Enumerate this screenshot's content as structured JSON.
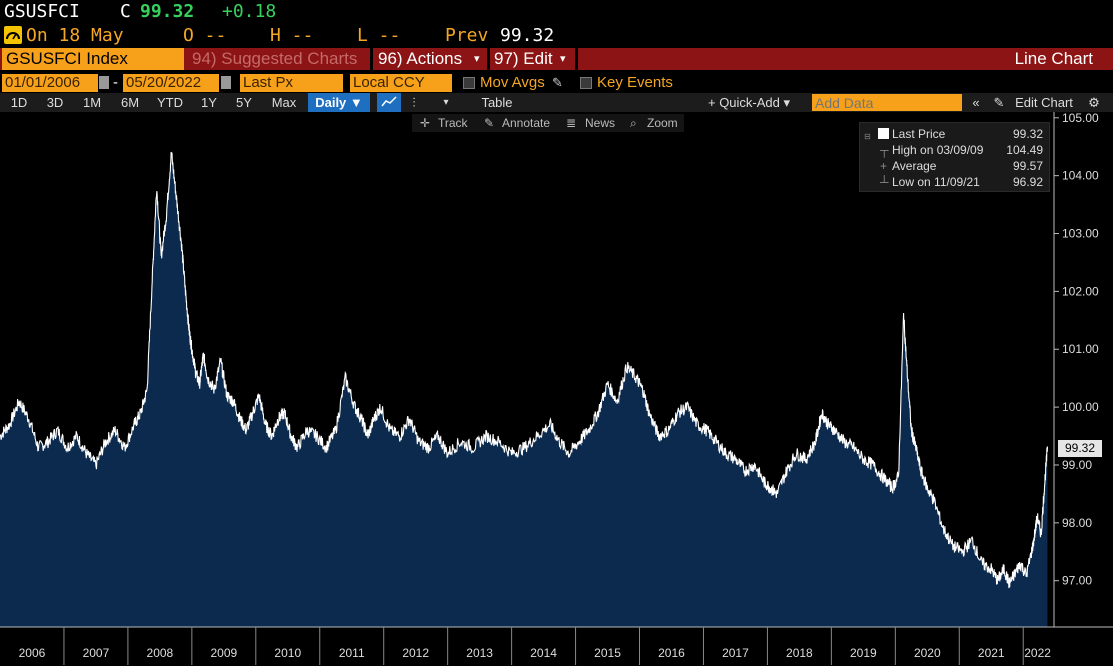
{
  "quote": {
    "ticker": "GSUSFCI",
    "close_flag": "C",
    "price": "99.32",
    "change": "+0.18",
    "date_label": "On 18 May",
    "open_label": "O --",
    "high_label": "H --",
    "low_label": "L --",
    "prev_label": "Prev",
    "prev_value": "99.32"
  },
  "menu": {
    "security": "GSUSFCI Index",
    "suggested": "94) Suggested Charts",
    "actions": "96) Actions",
    "edit": "97) Edit",
    "chart_type": "Line Chart"
  },
  "settings": {
    "start_date": "01/01/2006",
    "end_date": "05/20/2022",
    "field": "Last Px",
    "currency": "Local CCY",
    "mov_avgs": "Mov Avgs",
    "key_events": "Key Events"
  },
  "toolbar": {
    "periods": [
      "1D",
      "3D",
      "1M",
      "6M",
      "YTD",
      "1Y",
      "5Y",
      "Max"
    ],
    "frequency": "Daily ▼",
    "table": "Table",
    "quick_add": "+ Quick-Add ▾",
    "add_data_placeholder": "Add Data",
    "edit_chart": "Edit Chart",
    "track": "Track",
    "annotate": "Annotate",
    "news": "News",
    "zoom": "Zoom"
  },
  "legend": {
    "last_price_label": "Last Price",
    "last_price_value": "99.32",
    "high_label": "High on 03/09/09",
    "high_value": "104.49",
    "average_label": "Average",
    "average_value": "99.57",
    "low_label": "Low on 11/09/21",
    "low_value": "96.92"
  },
  "last_value_tag": "99.32",
  "colors": {
    "line": "#ffffff",
    "area_fill": "#0b2a4d",
    "background": "#000000",
    "amber": "#f5a623",
    "menu_red": "#8c1414"
  },
  "chart_data": {
    "type": "area",
    "title": "",
    "xlabel": "",
    "ylabel": "",
    "x_ticks": [
      "2006",
      "2007",
      "2008",
      "2009",
      "2010",
      "2011",
      "2012",
      "2013",
      "2014",
      "2015",
      "2016",
      "2017",
      "2018",
      "2019",
      "2020",
      "2021",
      "2022"
    ],
    "y_ticks": [
      "97.00",
      "98.00",
      "99.00",
      "100.00",
      "101.00",
      "102.00",
      "103.00",
      "104.00",
      "105.00"
    ],
    "ylim": [
      96.2,
      105.1
    ],
    "xlim": [
      2006.0,
      2022.45
    ],
    "grid": false,
    "series": [
      {
        "name": "Last Price",
        "x": [
          2006.0,
          2006.15,
          2006.3,
          2006.45,
          2006.6,
          2006.75,
          2006.9,
          2007.05,
          2007.2,
          2007.35,
          2007.5,
          2007.65,
          2007.8,
          2007.95,
          2008.1,
          2008.2,
          2008.3,
          2008.38,
          2008.45,
          2008.52,
          2008.6,
          2008.68,
          2008.76,
          2008.84,
          2008.9,
          2008.96,
          2009.0,
          2009.06,
          2009.12,
          2009.18,
          2009.25,
          2009.35,
          2009.45,
          2009.55,
          2009.65,
          2009.75,
          2009.85,
          2009.95,
          2010.05,
          2010.15,
          2010.25,
          2010.35,
          2010.45,
          2010.55,
          2010.65,
          2010.8,
          2010.95,
          2011.1,
          2011.25,
          2011.4,
          2011.55,
          2011.65,
          2011.75,
          2011.85,
          2011.95,
          2012.1,
          2012.25,
          2012.4,
          2012.55,
          2012.7,
          2012.85,
          2013.0,
          2013.2,
          2013.4,
          2013.6,
          2013.8,
          2014.0,
          2014.2,
          2014.4,
          2014.6,
          2014.75,
          2014.9,
          2015.05,
          2015.2,
          2015.35,
          2015.5,
          2015.65,
          2015.8,
          2015.95,
          2016.05,
          2016.15,
          2016.3,
          2016.45,
          2016.6,
          2016.75,
          2016.9,
          2017.05,
          2017.2,
          2017.35,
          2017.5,
          2017.65,
          2017.8,
          2017.95,
          2018.05,
          2018.15,
          2018.3,
          2018.45,
          2018.6,
          2018.75,
          2018.85,
          2018.95,
          2019.05,
          2019.2,
          2019.35,
          2019.5,
          2019.65,
          2019.8,
          2019.95,
          2020.05,
          2020.13,
          2020.18,
          2020.25,
          2020.32,
          2020.4,
          2020.5,
          2020.6,
          2020.75,
          2020.9,
          2021.05,
          2021.2,
          2021.35,
          2021.5,
          2021.6,
          2021.7,
          2021.78,
          2021.86,
          2021.95,
          2022.05,
          2022.15,
          2022.22,
          2022.28,
          2022.33,
          2022.38
        ],
        "values": [
          99.5,
          99.7,
          100.1,
          99.8,
          99.3,
          99.4,
          99.6,
          99.3,
          99.5,
          99.2,
          99.0,
          99.4,
          99.6,
          99.3,
          99.7,
          99.9,
          100.3,
          102.2,
          103.8,
          102.6,
          103.3,
          104.4,
          103.6,
          102.8,
          102.0,
          101.3,
          101.0,
          100.6,
          100.4,
          100.9,
          100.5,
          100.3,
          100.8,
          100.2,
          100.1,
          99.8,
          99.6,
          99.9,
          100.2,
          99.7,
          99.5,
          99.8,
          99.9,
          99.5,
          99.3,
          99.6,
          99.5,
          99.3,
          99.6,
          100.5,
          100.0,
          99.8,
          99.5,
          99.8,
          100.0,
          99.6,
          99.5,
          99.8,
          99.4,
          99.3,
          99.5,
          99.2,
          99.4,
          99.3,
          99.5,
          99.4,
          99.2,
          99.3,
          99.5,
          99.7,
          99.4,
          99.2,
          99.4,
          99.6,
          99.9,
          100.4,
          100.1,
          100.7,
          100.5,
          100.3,
          99.9,
          99.5,
          99.6,
          99.9,
          100.0,
          99.7,
          99.6,
          99.4,
          99.2,
          99.1,
          98.9,
          99.0,
          98.7,
          98.6,
          98.5,
          98.9,
          99.2,
          99.1,
          99.4,
          99.9,
          99.7,
          99.6,
          99.4,
          99.3,
          99.1,
          99.0,
          98.8,
          98.6,
          98.8,
          101.6,
          100.7,
          99.6,
          99.3,
          98.9,
          98.6,
          98.4,
          97.9,
          97.6,
          97.5,
          97.7,
          97.3,
          97.2,
          97.0,
          97.2,
          96.95,
          97.1,
          97.3,
          97.1,
          97.6,
          98.1,
          97.8,
          98.6,
          99.32
        ]
      }
    ]
  }
}
